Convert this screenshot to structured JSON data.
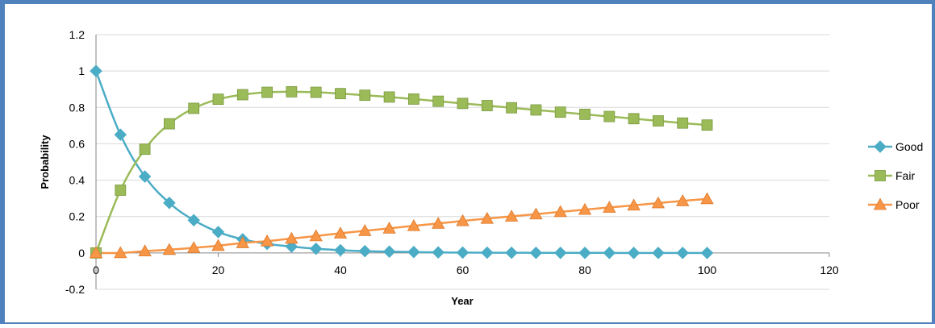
{
  "chart_data": {
    "type": "line",
    "title": "",
    "xlabel": "Year",
    "ylabel": "Probability",
    "xlim": [
      0,
      120
    ],
    "ylim": [
      -0.2,
      1.2
    ],
    "x_ticks": [
      0,
      20,
      40,
      60,
      80,
      100,
      120
    ],
    "y_ticks": [
      -0.2,
      0,
      0.2,
      0.4,
      0.6,
      0.8,
      1,
      1.2
    ],
    "x_tick_labels": [
      "0",
      "20",
      "40",
      "60",
      "80",
      "100",
      "120"
    ],
    "y_tick_labels": [
      "-0.2",
      "0",
      "0.2",
      "0.4",
      "0.6",
      "0.8",
      "1",
      "1.2"
    ],
    "grid": "horizontal",
    "legend_position": "right",
    "x": [
      0,
      4,
      8,
      12,
      16,
      20,
      24,
      28,
      32,
      36,
      40,
      44,
      48,
      52,
      56,
      60,
      64,
      68,
      72,
      76,
      80,
      84,
      88,
      92,
      96,
      100
    ],
    "series": [
      {
        "name": "Good",
        "marker": "diamond",
        "color": "#4bacc6",
        "values": [
          1.0,
          0.65,
          0.42,
          0.275,
          0.18,
          0.115,
          0.075,
          0.05,
          0.035,
          0.023,
          0.015,
          0.01,
          0.007,
          0.005,
          0.003,
          0.002,
          0.0015,
          0.001,
          0.0007,
          0.0005,
          0.0003,
          0.0002,
          0.0001,
          0.0001,
          0.0001,
          0.0
        ]
      },
      {
        "name": "Fair",
        "marker": "square",
        "color": "#9bbb59",
        "values": [
          0.0,
          0.345,
          0.57,
          0.71,
          0.795,
          0.845,
          0.87,
          0.883,
          0.886,
          0.883,
          0.876,
          0.867,
          0.857,
          0.846,
          0.834,
          0.822,
          0.81,
          0.798,
          0.786,
          0.774,
          0.762,
          0.75,
          0.738,
          0.726,
          0.714,
          0.703
        ]
      },
      {
        "name": "Poor",
        "marker": "triangle",
        "color": "#f79646",
        "values": [
          0.0,
          0.0,
          0.01,
          0.018,
          0.028,
          0.04,
          0.055,
          0.065,
          0.079,
          0.093,
          0.108,
          0.122,
          0.135,
          0.149,
          0.162,
          0.176,
          0.189,
          0.201,
          0.213,
          0.226,
          0.238,
          0.25,
          0.262,
          0.274,
          0.286,
          0.297
        ]
      }
    ]
  }
}
